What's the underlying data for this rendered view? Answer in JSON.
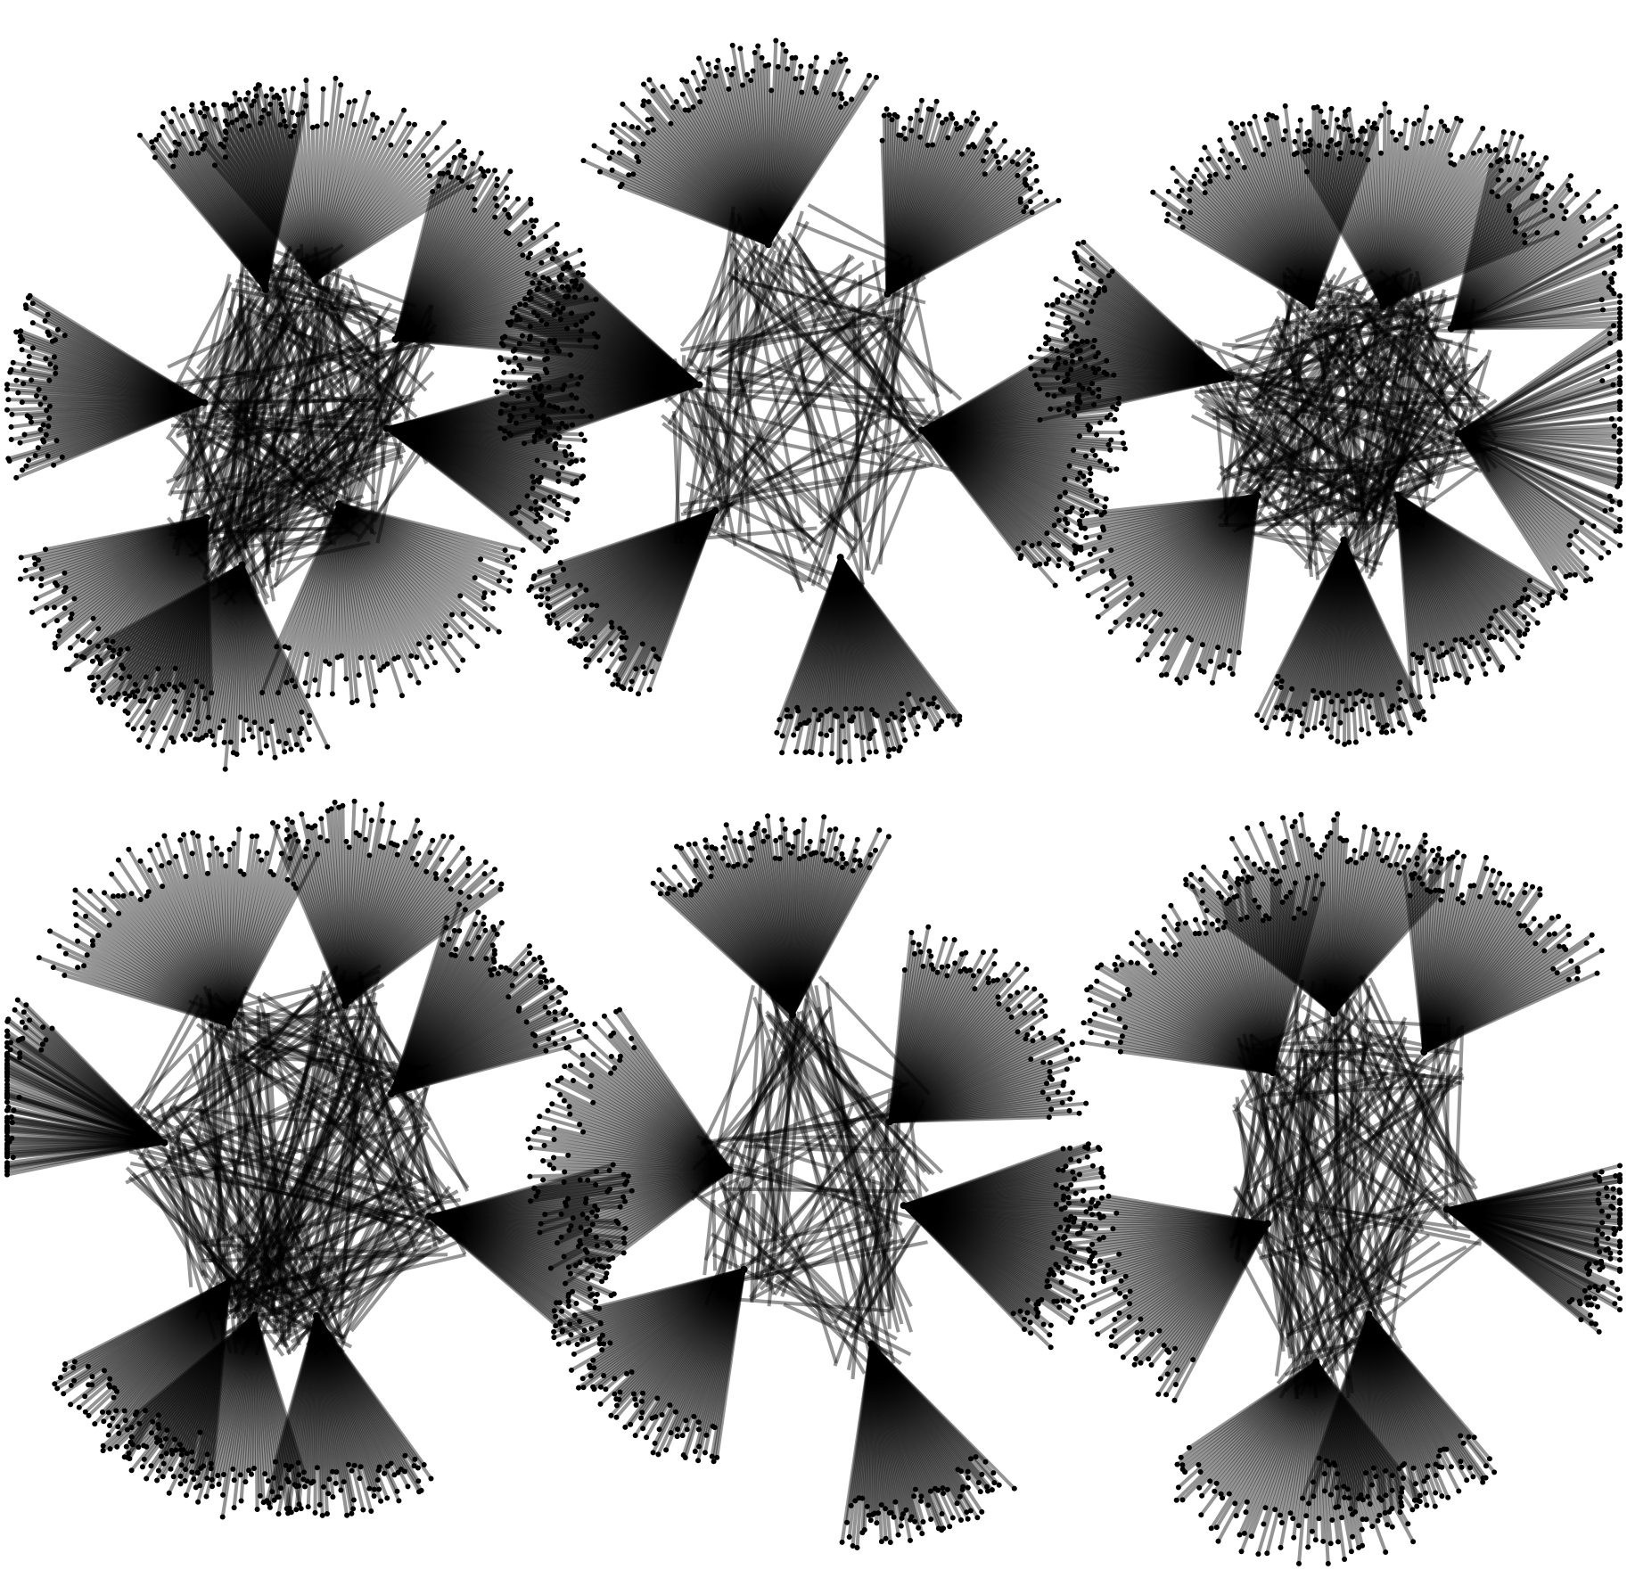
{
  "figure": {
    "background": "#ffffff",
    "edge_color": "#000000",
    "edge_opacity": 0.42,
    "node_color": "#000000",
    "grid": "2x3",
    "panels": [
      {
        "id": "network-1",
        "hubs": 8,
        "leaves_per_hub": [
          95,
          70,
          85,
          80,
          75,
          70,
          60,
          85
        ]
      },
      {
        "id": "network-2",
        "hubs": 6,
        "leaves_per_hub": [
          110,
          90,
          80,
          120,
          100,
          75
        ]
      },
      {
        "id": "network-3",
        "hubs": 8,
        "leaves_per_hub": [
          70,
          75,
          80,
          70,
          85,
          80,
          75,
          60
        ]
      },
      {
        "id": "network-4",
        "hubs": 8,
        "leaves_per_hub": [
          80,
          75,
          70,
          80,
          85,
          75,
          70,
          80
        ]
      },
      {
        "id": "network-5",
        "hubs": 6,
        "leaves_per_hub": [
          110,
          85,
          90,
          80,
          95,
          90
        ]
      },
      {
        "id": "network-6",
        "hubs": 7,
        "leaves_per_hub": [
          90,
          85,
          80,
          75,
          85,
          90,
          70
        ]
      }
    ]
  }
}
